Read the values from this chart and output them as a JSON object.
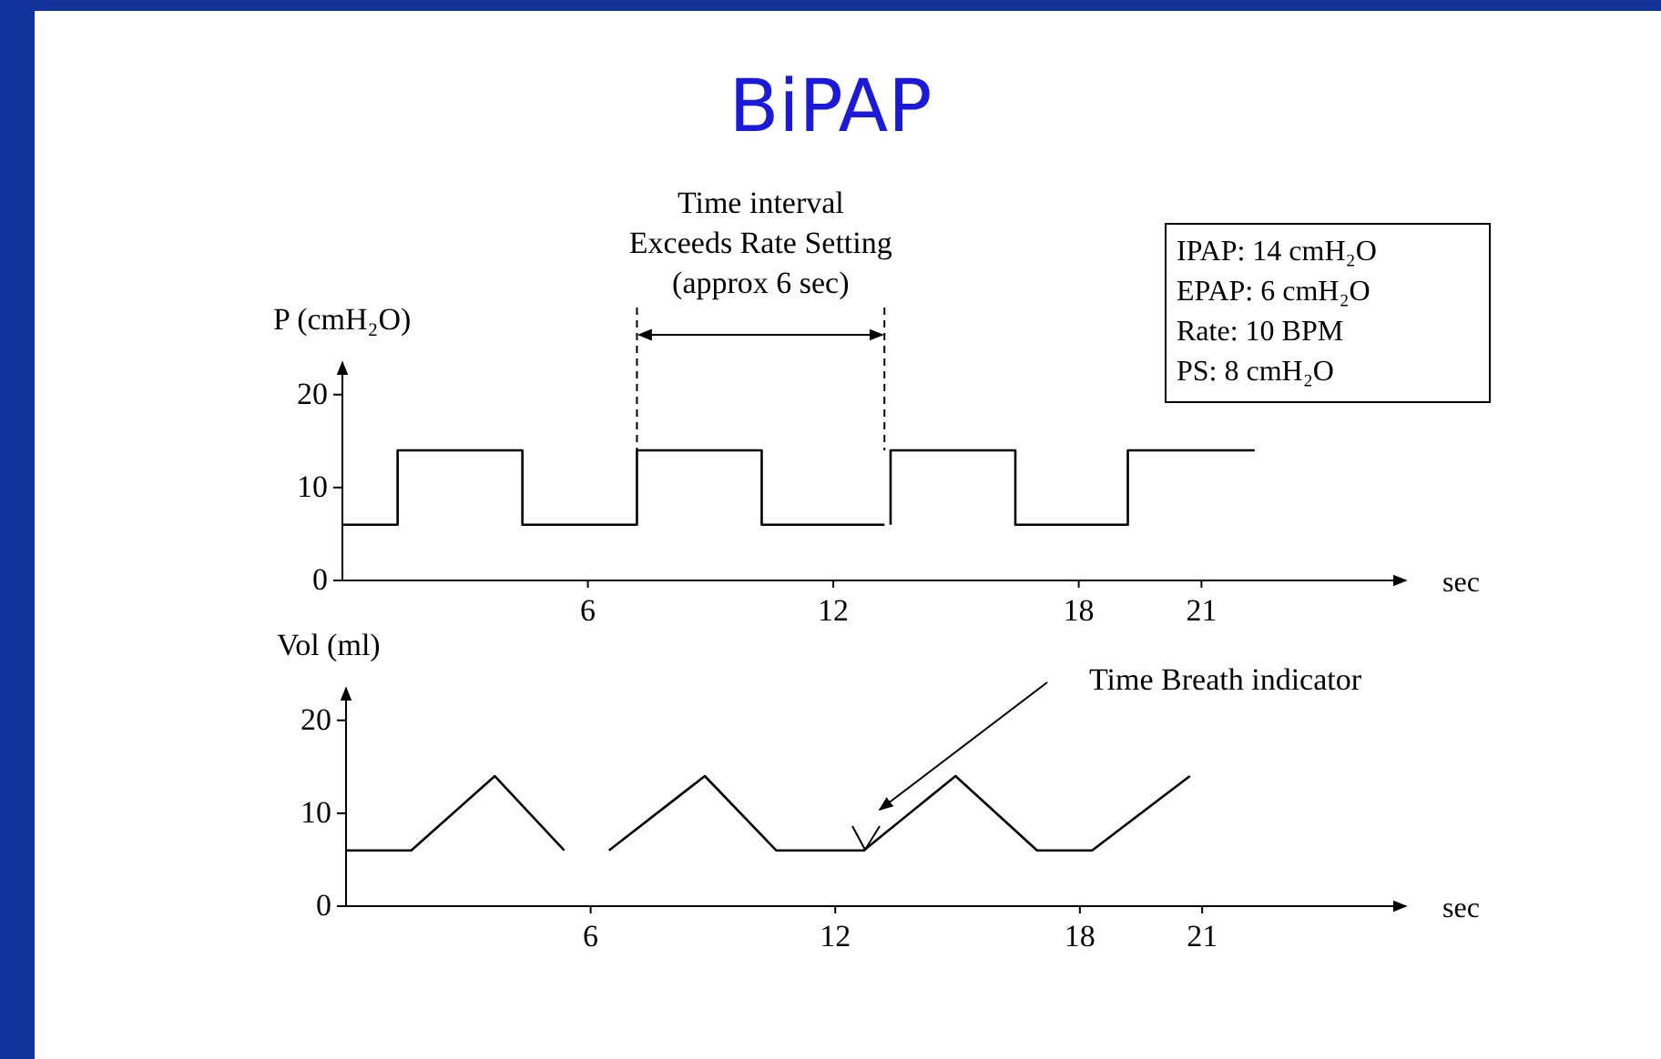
{
  "chart_data": [
    {
      "type": "step",
      "title": "BiPAP",
      "xlabel": "sec",
      "ylabel": "P (cmH₂O)",
      "xlim": [
        0,
        26
      ],
      "xticks": [
        6,
        12,
        18,
        21
      ],
      "ylim": [
        0,
        23.5
      ],
      "yticks": [
        0,
        10,
        20
      ],
      "x": [
        0,
        1.35,
        4.4,
        7.2,
        10.25,
        13.25,
        13.3,
        13.4,
        13.4,
        16.45,
        19.2,
        22.3
      ],
      "series": [
        {
          "color": "#000000",
          "values": [
            6,
            14,
            6,
            14,
            6,
            6,
            null,
            6,
            14,
            6,
            14,
            14
          ]
        }
      ],
      "ref_lines": [
        {
          "axis": "x",
          "value": 7.2,
          "line_style": "dashed"
        },
        {
          "axis": "x",
          "value": 13.25,
          "line_style": "dashed"
        }
      ],
      "annotations": [
        "Time interval\nExceeds Rate Setting\n(approx 6 sec)",
        "IPAP: 14 cmH₂O",
        "EPAP: 6 cmH₂O",
        "Rate: 10 BPM",
        "PS: 8 cmH₂O"
      ]
    },
    {
      "type": "line",
      "xlabel": "sec",
      "ylabel": "Vol (ml)",
      "xlim": [
        0,
        26
      ],
      "xticks": [
        6,
        12,
        18,
        21
      ],
      "ylim": [
        0,
        23.5
      ],
      "yticks": [
        0,
        10,
        20
      ],
      "x": [
        0,
        1.6,
        3.65,
        5.35,
        5.9,
        6.45,
        8.8,
        10.55,
        12.7,
        14.95,
        16.95,
        18.3,
        20.7
      ],
      "series": [
        {
          "color": "#000000",
          "values": [
            6,
            6,
            14,
            6,
            null,
            6,
            14,
            6,
            6,
            14,
            6,
            6,
            14
          ]
        }
      ],
      "annotations": [
        "Time Breath indicator"
      ]
    }
  ]
}
